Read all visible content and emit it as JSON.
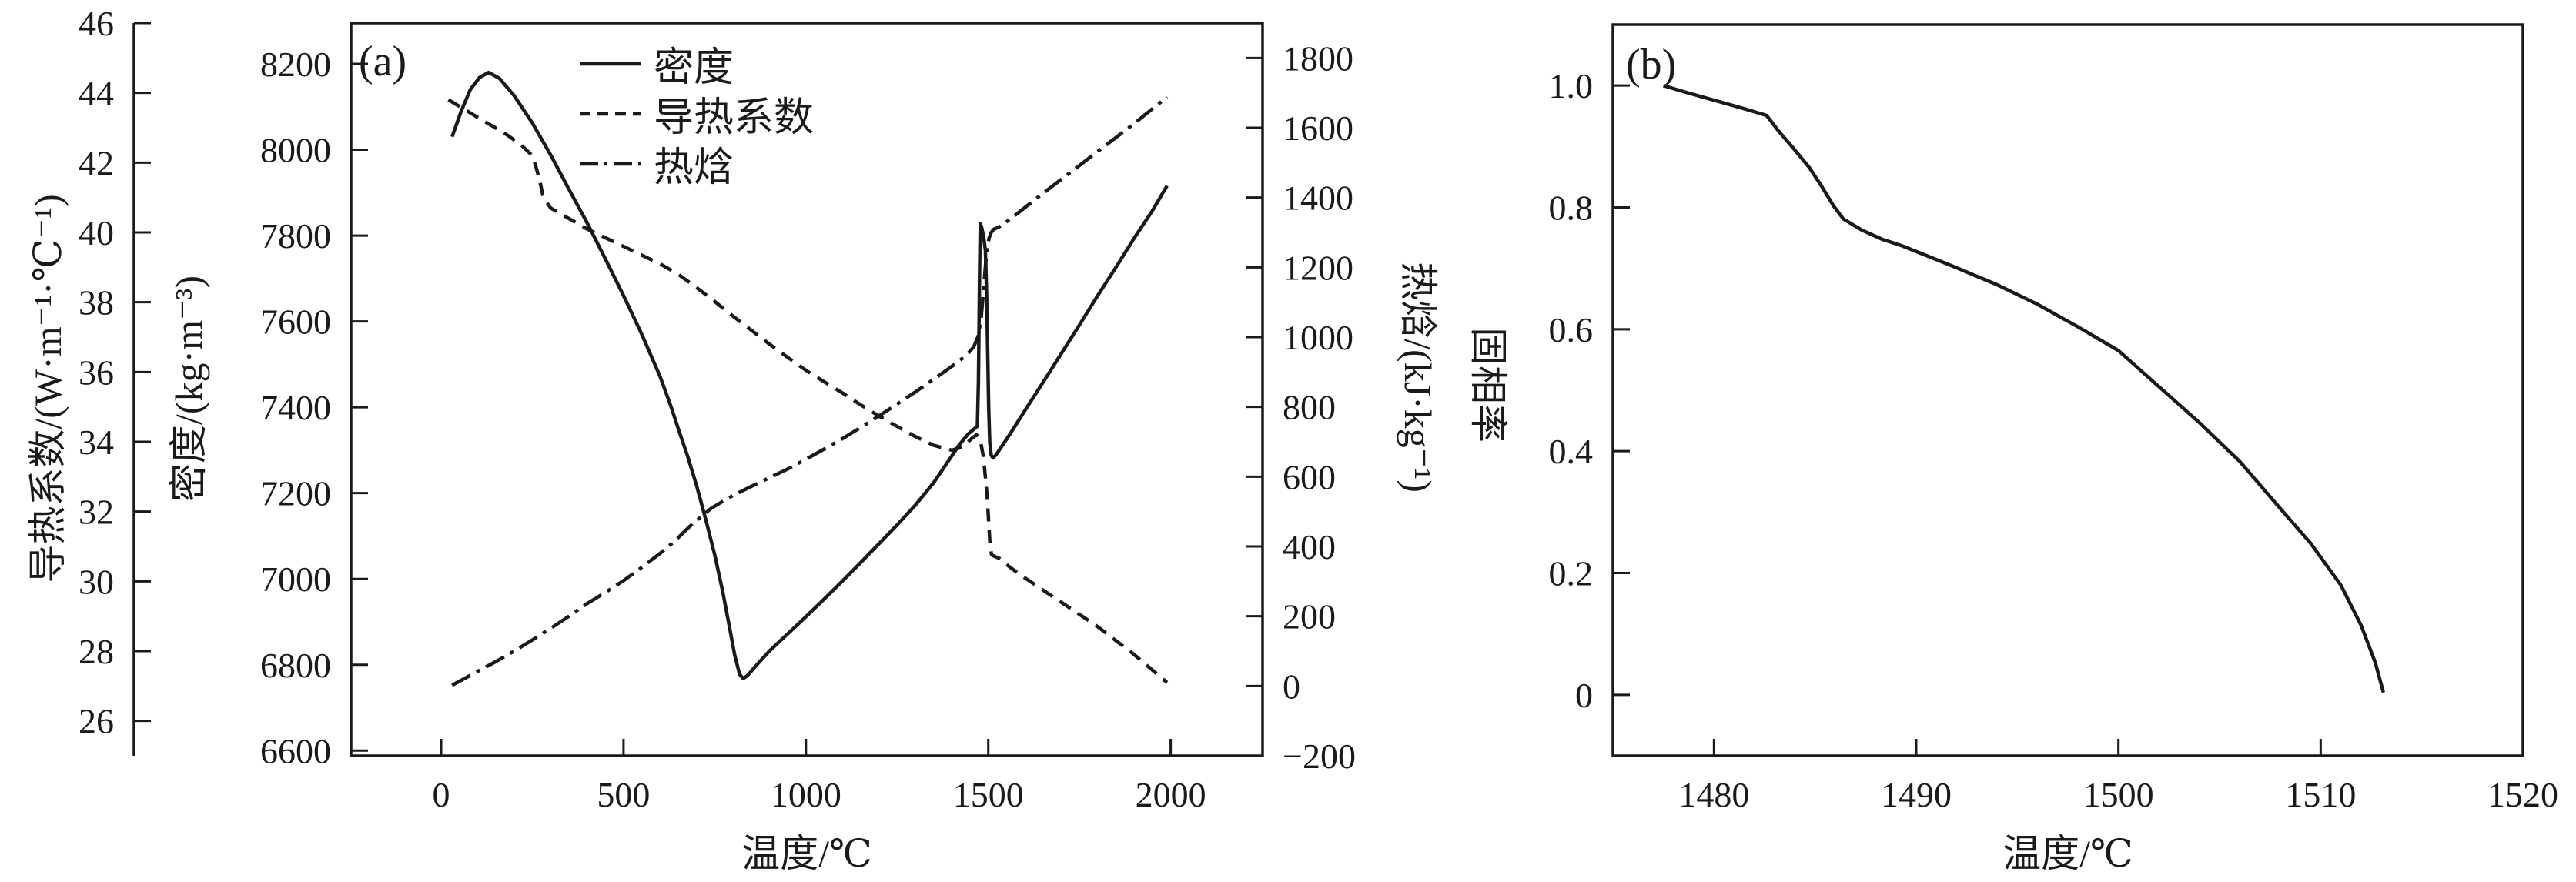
{
  "chart_data": [
    {
      "type": "line",
      "panel_label": "(a)",
      "xlabel": "温度/℃",
      "xlim": [
        -247,
        2252
      ],
      "xticks": [
        [
          0,
          "0"
        ],
        [
          500,
          "500"
        ],
        [
          1000,
          "1000"
        ],
        [
          1500,
          "1500"
        ],
        [
          2000,
          "2000"
        ]
      ],
      "grid": false,
      "legend_position": "top-center-inside",
      "y_axes": {
        "conductivity": {
          "label": "导热系数/(W·m⁻¹·℃⁻¹)",
          "lim": [
            25,
            46
          ],
          "ticks": [
            [
              26,
              "26"
            ],
            [
              28,
              "28"
            ],
            [
              30,
              "30"
            ],
            [
              32,
              "32"
            ],
            [
              34,
              "34"
            ],
            [
              36,
              "36"
            ],
            [
              38,
              "38"
            ],
            [
              40,
              "40"
            ],
            [
              42,
              "42"
            ],
            [
              44,
              "44"
            ],
            [
              46,
              "46"
            ]
          ]
        },
        "density": {
          "label": "密度/(kg·m⁻³)",
          "lim": [
            6588,
            8295
          ],
          "ticks": [
            [
              6600,
              "6600"
            ],
            [
              6800,
              "6800"
            ],
            [
              7000,
              "7000"
            ],
            [
              7200,
              "7200"
            ],
            [
              7400,
              "7400"
            ],
            [
              7600,
              "7600"
            ],
            [
              7800,
              "7800"
            ],
            [
              8000,
              "8000"
            ],
            [
              8200,
              "8200"
            ]
          ]
        },
        "enthalpy": {
          "label": "热焓/(kJ·kg⁻¹)",
          "lim": [
            -200,
            1900
          ],
          "ticks": [
            [
              -200,
              "−200"
            ],
            [
              0,
              "0"
            ],
            [
              200,
              "200"
            ],
            [
              400,
              "400"
            ],
            [
              600,
              "600"
            ],
            [
              800,
              "800"
            ],
            [
              1000,
              "1000"
            ],
            [
              1200,
              "1200"
            ],
            [
              1400,
              "1400"
            ],
            [
              1600,
              "1600"
            ],
            [
              1800,
              "1800"
            ]
          ]
        }
      },
      "series": [
        {
          "name": "密度",
          "yaxis": "density",
          "line": "solid",
          "points": [
            [
              30,
              8030
            ],
            [
              55,
              8090
            ],
            [
              80,
              8140
            ],
            [
              105,
              8168
            ],
            [
              130,
              8180
            ],
            [
              160,
              8166
            ],
            [
              200,
              8126
            ],
            [
              250,
              8062
            ],
            [
              300,
              7988
            ],
            [
              350,
              7908
            ],
            [
              400,
              7830
            ],
            [
              450,
              7746
            ],
            [
              500,
              7660
            ],
            [
              550,
              7570
            ],
            [
              600,
              7472
            ],
            [
              630,
              7402
            ],
            [
              650,
              7350
            ],
            [
              675,
              7288
            ],
            [
              700,
              7218
            ],
            [
              725,
              7140
            ],
            [
              750,
              7056
            ],
            [
              772,
              6970
            ],
            [
              790,
              6890
            ],
            [
              805,
              6822
            ],
            [
              818,
              6778
            ],
            [
              828,
              6768
            ],
            [
              840,
              6775
            ],
            [
              860,
              6795
            ],
            [
              900,
              6832
            ],
            [
              950,
              6872
            ],
            [
              1000,
              6912
            ],
            [
              1050,
              6953
            ],
            [
              1100,
              6995
            ],
            [
              1150,
              7038
            ],
            [
              1200,
              7082
            ],
            [
              1250,
              7126
            ],
            [
              1300,
              7172
            ],
            [
              1350,
              7224
            ],
            [
              1390,
              7274
            ],
            [
              1420,
              7312
            ],
            [
              1445,
              7338
            ],
            [
              1462,
              7350
            ],
            [
              1470,
              7356
            ],
            [
              1473,
              7460
            ],
            [
              1476,
              7700
            ],
            [
              1478,
              7828
            ],
            [
              1482,
              7818
            ],
            [
              1487,
              7798
            ],
            [
              1492,
              7766
            ],
            [
              1495,
              7680
            ],
            [
              1498,
              7540
            ],
            [
              1501,
              7400
            ],
            [
              1504,
              7318
            ],
            [
              1508,
              7288
            ],
            [
              1513,
              7282
            ],
            [
              1522,
              7290
            ],
            [
              1560,
              7338
            ],
            [
              1600,
              7392
            ],
            [
              1650,
              7458
            ],
            [
              1700,
              7525
            ],
            [
              1750,
              7592
            ],
            [
              1800,
              7660
            ],
            [
              1850,
              7726
            ],
            [
              1900,
              7794
            ],
            [
              1950,
              7858
            ],
            [
              1990,
              7916
            ]
          ]
        },
        {
          "name": "导热系数",
          "yaxis": "conductivity",
          "line": "dashed",
          "points": [
            [
              20,
              43.8
            ],
            [
              60,
              43.55
            ],
            [
              100,
              43.3
            ],
            [
              140,
              43.05
            ],
            [
              180,
              42.8
            ],
            [
              220,
              42.5
            ],
            [
              245,
              42.25
            ],
            [
              258,
              41.95
            ],
            [
              270,
              41.5
            ],
            [
              280,
              41.0
            ],
            [
              300,
              40.7
            ],
            [
              350,
              40.4
            ],
            [
              400,
              40.1
            ],
            [
              450,
              39.85
            ],
            [
              500,
              39.6
            ],
            [
              550,
              39.35
            ],
            [
              600,
              39.1
            ],
            [
              650,
              38.8
            ],
            [
              700,
              38.42
            ],
            [
              750,
              38.02
            ],
            [
              800,
              37.6
            ],
            [
              850,
              37.2
            ],
            [
              900,
              36.8
            ],
            [
              950,
              36.42
            ],
            [
              1000,
              36.05
            ],
            [
              1050,
              35.72
            ],
            [
              1100,
              35.4
            ],
            [
              1150,
              35.06
            ],
            [
              1200,
              34.74
            ],
            [
              1250,
              34.44
            ],
            [
              1300,
              34.15
            ],
            [
              1350,
              33.9
            ],
            [
              1400,
              33.76
            ],
            [
              1430,
              33.85
            ],
            [
              1455,
              34.1
            ],
            [
              1468,
              34.2
            ],
            [
              1478,
              34.05
            ],
            [
              1486,
              33.6
            ],
            [
              1492,
              33.0
            ],
            [
              1497,
              32.4
            ],
            [
              1501,
              31.7
            ],
            [
              1505,
              31.0
            ],
            [
              1509,
              30.76
            ],
            [
              1516,
              30.72
            ],
            [
              1530,
              30.66
            ],
            [
              1560,
              30.4
            ],
            [
              1600,
              30.1
            ],
            [
              1650,
              29.75
            ],
            [
              1700,
              29.4
            ],
            [
              1750,
              29.05
            ],
            [
              1800,
              28.7
            ],
            [
              1850,
              28.3
            ],
            [
              1900,
              27.9
            ],
            [
              1945,
              27.5
            ],
            [
              1990,
              27.1
            ]
          ]
        },
        {
          "name": "热焓",
          "yaxis": "enthalpy",
          "line": "dashdot",
          "points": [
            [
              30,
              2
            ],
            [
              100,
              42
            ],
            [
              150,
              70
            ],
            [
              200,
              100
            ],
            [
              250,
              132
            ],
            [
              300,
              165
            ],
            [
              350,
              200
            ],
            [
              400,
              236
            ],
            [
              450,
              268
            ],
            [
              500,
              302
            ],
            [
              550,
              340
            ],
            [
              600,
              380
            ],
            [
              640,
              415
            ],
            [
              680,
              456
            ],
            [
              710,
              483
            ],
            [
              740,
              509
            ],
            [
              770,
              528
            ],
            [
              800,
              546
            ],
            [
              850,
              572
            ],
            [
              900,
              597
            ],
            [
              950,
              622
            ],
            [
              1000,
              650
            ],
            [
              1050,
              679
            ],
            [
              1100,
              709
            ],
            [
              1150,
              741
            ],
            [
              1200,
              774
            ],
            [
              1250,
              808
            ],
            [
              1300,
              843
            ],
            [
              1350,
              879
            ],
            [
              1400,
              916
            ],
            [
              1440,
              948
            ],
            [
              1460,
              972
            ],
            [
              1472,
              1002
            ],
            [
              1480,
              1050
            ],
            [
              1486,
              1122
            ],
            [
              1492,
              1202
            ],
            [
              1497,
              1254
            ],
            [
              1502,
              1284
            ],
            [
              1508,
              1300
            ],
            [
              1515,
              1309
            ],
            [
              1530,
              1316
            ],
            [
              1560,
              1338
            ],
            [
              1600,
              1371
            ],
            [
              1650,
              1412
            ],
            [
              1700,
              1452
            ],
            [
              1750,
              1492
            ],
            [
              1800,
              1532
            ],
            [
              1850,
              1572
            ],
            [
              1900,
              1612
            ],
            [
              1945,
              1650
            ],
            [
              1990,
              1688
            ]
          ]
        }
      ]
    },
    {
      "type": "line",
      "panel_label": "(b)",
      "xlabel": "温度/℃",
      "ylabel": "固相率",
      "xlim": [
        1475,
        1520
      ],
      "ylim": [
        -0.1,
        1.1
      ],
      "xticks": [
        [
          1480,
          "1480"
        ],
        [
          1490,
          "1490"
        ],
        [
          1500,
          "1500"
        ],
        [
          1510,
          "1510"
        ],
        [
          1520,
          "1520"
        ]
      ],
      "yticks": [
        [
          0,
          "0"
        ],
        [
          0.2,
          "0.2"
        ],
        [
          0.4,
          "0.4"
        ],
        [
          0.6,
          "0.6"
        ],
        [
          0.8,
          "0.8"
        ],
        [
          1.0,
          "1.0"
        ]
      ],
      "grid": false,
      "series": [
        {
          "name": "固相率",
          "line": "solid",
          "points": [
            [
              1477.5,
              1.0
            ],
            [
              1478.5,
              0.99
            ],
            [
              1480,
              0.976
            ],
            [
              1481.5,
              0.962
            ],
            [
              1482.6,
              0.951
            ],
            [
              1483.2,
              0.925
            ],
            [
              1483.9,
              0.898
            ],
            [
              1484.7,
              0.866
            ],
            [
              1485.3,
              0.836
            ],
            [
              1485.9,
              0.803
            ],
            [
              1486.4,
              0.781
            ],
            [
              1487.3,
              0.763
            ],
            [
              1488.3,
              0.748
            ],
            [
              1489.3,
              0.737
            ],
            [
              1490.5,
              0.721
            ],
            [
              1492,
              0.701
            ],
            [
              1494,
              0.673
            ],
            [
              1496,
              0.641
            ],
            [
              1498,
              0.604
            ],
            [
              1500,
              0.565
            ],
            [
              1502,
              0.506
            ],
            [
              1504,
              0.447
            ],
            [
              1506,
              0.383
            ],
            [
              1508,
              0.306
            ],
            [
              1509.5,
              0.249
            ],
            [
              1511,
              0.18
            ],
            [
              1512,
              0.114
            ],
            [
              1512.7,
              0.053
            ],
            [
              1513.1,
              0.004
            ]
          ]
        }
      ]
    }
  ]
}
